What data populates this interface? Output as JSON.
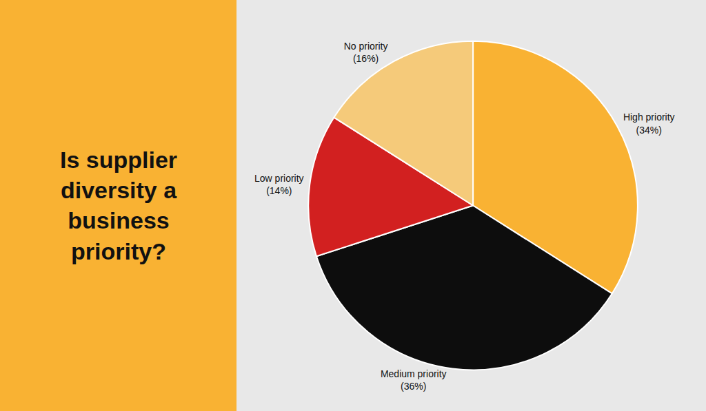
{
  "chart_data": {
    "type": "pie",
    "title": "Is supplier\ndiversity a\nbusiness\npriority?",
    "categories": [
      "High priority",
      "Medium priority",
      "Low priority",
      "No priority"
    ],
    "values": [
      34,
      36,
      14,
      16
    ],
    "value_labels": [
      "(34%)",
      "(36%)",
      "(14%)",
      "(16%)"
    ],
    "colors": [
      "#F9B233",
      "#0D0D0D",
      "#D22020",
      "#F5CA7A"
    ],
    "data_labels": true
  }
}
